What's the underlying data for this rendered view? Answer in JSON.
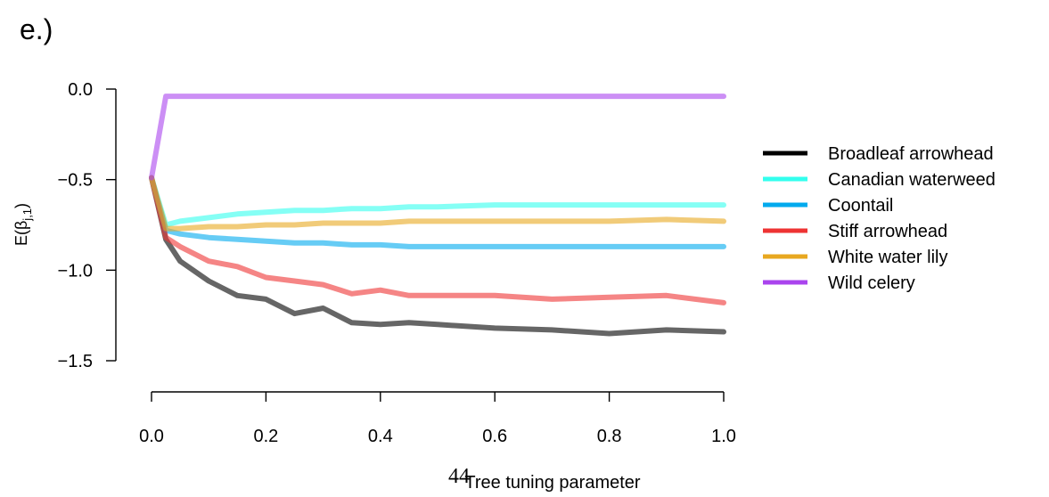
{
  "panel_label": "e.)",
  "page_number": "44",
  "chart_data": {
    "type": "line",
    "xlabel": "Tree tuning parameter",
    "ylabel": "E(β",
    "ylabel_sub": "j,1",
    "ylabel_close": ")",
    "xlim": [
      0,
      1
    ],
    "ylim": [
      -1.5,
      0.0
    ],
    "x_ticks": [
      "0.0",
      "0.2",
      "0.4",
      "0.6",
      "0.8",
      "1.0"
    ],
    "y_ticks": [
      "0.0",
      "−0.5",
      "−1.0",
      "−1.5"
    ],
    "legend_position": "right",
    "x": [
      0,
      0.025,
      0.05,
      0.1,
      0.15,
      0.2,
      0.25,
      0.3,
      0.35,
      0.4,
      0.45,
      0.5,
      0.6,
      0.7,
      0.8,
      0.9,
      1.0
    ],
    "series": [
      {
        "name": "Broadleaf arrowhead",
        "color": "#000000",
        "opacity": 0.6,
        "values": [
          -0.49,
          -0.83,
          -0.95,
          -1.06,
          -1.14,
          -1.16,
          -1.24,
          -1.21,
          -1.29,
          -1.3,
          -1.29,
          -1.3,
          -1.32,
          -1.33,
          -1.35,
          -1.33,
          -1.34
        ]
      },
      {
        "name": "Canadian waterweed",
        "color": "#33ffee",
        "opacity": 0.6,
        "values": [
          -0.49,
          -0.75,
          -0.73,
          -0.71,
          -0.69,
          -0.68,
          -0.67,
          -0.67,
          -0.66,
          -0.66,
          -0.65,
          -0.65,
          -0.64,
          -0.64,
          -0.64,
          -0.64,
          -0.64
        ]
      },
      {
        "name": "Coontail",
        "color": "#00aaee",
        "opacity": 0.6,
        "values": [
          -0.49,
          -0.78,
          -0.8,
          -0.82,
          -0.83,
          -0.84,
          -0.85,
          -0.85,
          -0.86,
          -0.86,
          -0.87,
          -0.87,
          -0.87,
          -0.87,
          -0.87,
          -0.87,
          -0.87
        ]
      },
      {
        "name": "Stiff arrowhead",
        "color": "#ee3333",
        "opacity": 0.6,
        "values": [
          -0.49,
          -0.82,
          -0.87,
          -0.95,
          -0.98,
          -1.04,
          -1.06,
          -1.08,
          -1.13,
          -1.11,
          -1.14,
          -1.14,
          -1.14,
          -1.16,
          -1.15,
          -1.14,
          -1.18
        ]
      },
      {
        "name": "White water lily",
        "color": "#e8a820",
        "opacity": 0.6,
        "values": [
          -0.49,
          -0.77,
          -0.77,
          -0.76,
          -0.76,
          -0.75,
          -0.75,
          -0.74,
          -0.74,
          -0.74,
          -0.73,
          -0.73,
          -0.73,
          -0.73,
          -0.73,
          -0.72,
          -0.73
        ]
      },
      {
        "name": "Wild celery",
        "color": "#aa44ee",
        "opacity": 0.6,
        "values": [
          -0.49,
          -0.04,
          -0.04,
          -0.04,
          -0.04,
          -0.04,
          -0.04,
          -0.04,
          -0.04,
          -0.04,
          -0.04,
          -0.04,
          -0.04,
          -0.04,
          -0.04,
          -0.04,
          -0.04
        ]
      }
    ]
  }
}
